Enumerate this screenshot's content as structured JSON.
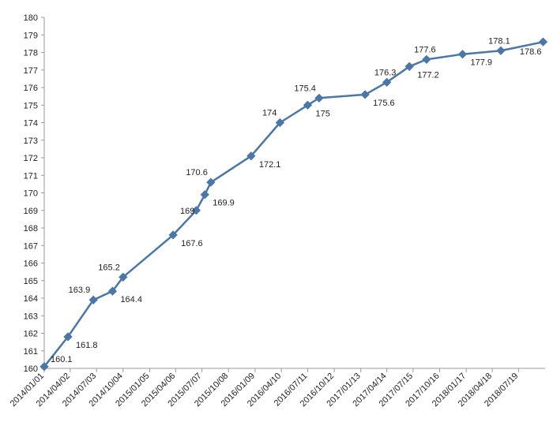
{
  "chart_data": {
    "type": "line",
    "title": "",
    "xlabel": "",
    "ylabel": "",
    "ylim": [
      160,
      180
    ],
    "y_ticks": [
      160,
      161,
      162,
      163,
      164,
      165,
      166,
      167,
      168,
      169,
      170,
      171,
      172,
      173,
      174,
      175,
      176,
      177,
      178,
      179,
      180
    ],
    "x_tick_labels": [
      "2014/01/01",
      "2014/04/02",
      "2014/07/03",
      "2014/10/04",
      "2015/01/05",
      "2015/04/06",
      "2015/07/07",
      "2015/10/08",
      "2016/01/09",
      "2016/04/10",
      "2016/07/11",
      "2016/10/12",
      "2017/01/13",
      "2017/04/14",
      "2017/07/15",
      "2017/10/16",
      "2018/01/17",
      "2018/04/18",
      "2018/07/19"
    ],
    "x_range": [
      "2014/01/01",
      "2018/10/20"
    ],
    "grid": false,
    "series_color": "#4a76a8",
    "series": [
      {
        "points": [
          {
            "x": "2014/01/01",
            "y": 160.1,
            "label": "160.1"
          },
          {
            "x": "2014/03/25",
            "y": 161.8,
            "label": "161.8"
          },
          {
            "x": "2014/06/22",
            "y": 163.9,
            "label": "163.9"
          },
          {
            "x": "2014/08/28",
            "y": 164.4,
            "label": "164.4"
          },
          {
            "x": "2014/10/04",
            "y": 165.2,
            "label": "165.2"
          },
          {
            "x": "2015/03/28",
            "y": 167.6,
            "label": "167.6"
          },
          {
            "x": "2015/06/17",
            "y": 169.0,
            "label": "169"
          },
          {
            "x": "2015/07/17",
            "y": 169.9,
            "label": "169.9"
          },
          {
            "x": "2015/08/07",
            "y": 170.6,
            "label": "170.6"
          },
          {
            "x": "2015/12/26",
            "y": 172.1,
            "label": "172.1"
          },
          {
            "x": "2016/04/05",
            "y": 174.0,
            "label": "174"
          },
          {
            "x": "2016/07/11",
            "y": 175.0,
            "label": "175"
          },
          {
            "x": "2016/08/20",
            "y": 175.4,
            "label": "175.4"
          },
          {
            "x": "2017/01/28",
            "y": 175.6,
            "label": "175.6"
          },
          {
            "x": "2017/04/14",
            "y": 176.3,
            "label": "176.3"
          },
          {
            "x": "2017/07/02",
            "y": 177.2,
            "label": "177.2"
          },
          {
            "x": "2017/08/31",
            "y": 177.6,
            "label": "177.6"
          },
          {
            "x": "2018/01/04",
            "y": 177.9,
            "label": "177.9"
          },
          {
            "x": "2018/05/18",
            "y": 178.1,
            "label": "178.1"
          },
          {
            "x": "2018/10/13",
            "y": 178.6,
            "label": "178.6"
          }
        ]
      }
    ]
  }
}
